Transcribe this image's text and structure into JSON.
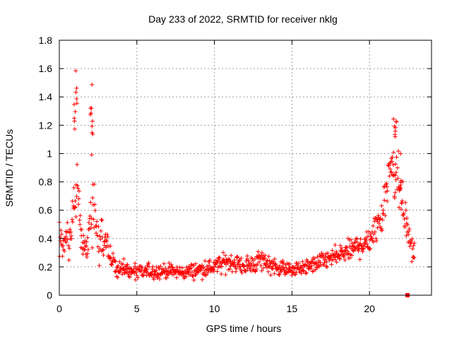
{
  "chart_data": {
    "type": "scatter",
    "title": "Day 233 of 2022, SRMTID for receiver nklg",
    "xlabel": "GPS time / hours",
    "ylabel": "SRMTID / TECUs",
    "xlim": [
      0,
      24
    ],
    "ylim": [
      0,
      1.8
    ],
    "x_ticks": [
      0,
      5,
      10,
      15,
      20
    ],
    "y_ticks": [
      0,
      0.2,
      0.4,
      0.6,
      0.8,
      1,
      1.2,
      1.4,
      1.6,
      1.8
    ],
    "x_tick_labels": [
      "0",
      "5",
      "10",
      "15",
      "20"
    ],
    "y_tick_labels": [
      "0",
      "0.2",
      "0.4",
      "0.6",
      "0.8",
      "1",
      "1.2",
      "1.4",
      "1.6",
      "1.8"
    ],
    "grid": true,
    "marker": "plus",
    "color": "#ff0000",
    "series_envelope": [
      {
        "x": 0.0,
        "y": 0.42,
        "spread": 0.18
      },
      {
        "x": 0.3,
        "y": 0.36,
        "spread": 0.16
      },
      {
        "x": 0.6,
        "y": 0.42,
        "spread": 0.22
      },
      {
        "x": 0.9,
        "y": 0.6,
        "spread": 0.3
      },
      {
        "x": 1.15,
        "y": 0.75,
        "spread": 0.4
      },
      {
        "x": 1.4,
        "y": 0.4,
        "spread": 0.2
      },
      {
        "x": 1.8,
        "y": 0.32,
        "spread": 0.14
      },
      {
        "x": 2.1,
        "y": 0.65,
        "spread": 0.45
      },
      {
        "x": 2.5,
        "y": 0.38,
        "spread": 0.2
      },
      {
        "x": 3.0,
        "y": 0.35,
        "spread": 0.2
      },
      {
        "x": 3.5,
        "y": 0.22,
        "spread": 0.1
      },
      {
        "x": 4.0,
        "y": 0.18,
        "spread": 0.09
      },
      {
        "x": 5.0,
        "y": 0.16,
        "spread": 0.08
      },
      {
        "x": 6.0,
        "y": 0.17,
        "spread": 0.08
      },
      {
        "x": 7.0,
        "y": 0.17,
        "spread": 0.07
      },
      {
        "x": 8.0,
        "y": 0.16,
        "spread": 0.07
      },
      {
        "x": 9.0,
        "y": 0.18,
        "spread": 0.08
      },
      {
        "x": 10.0,
        "y": 0.2,
        "spread": 0.09
      },
      {
        "x": 11.0,
        "y": 0.24,
        "spread": 0.1
      },
      {
        "x": 12.0,
        "y": 0.2,
        "spread": 0.08
      },
      {
        "x": 13.0,
        "y": 0.25,
        "spread": 0.12
      },
      {
        "x": 14.0,
        "y": 0.2,
        "spread": 0.08
      },
      {
        "x": 15.0,
        "y": 0.18,
        "spread": 0.07
      },
      {
        "x": 16.0,
        "y": 0.2,
        "spread": 0.08
      },
      {
        "x": 17.0,
        "y": 0.24,
        "spread": 0.09
      },
      {
        "x": 18.0,
        "y": 0.28,
        "spread": 0.1
      },
      {
        "x": 19.0,
        "y": 0.33,
        "spread": 0.12
      },
      {
        "x": 19.8,
        "y": 0.38,
        "spread": 0.15
      },
      {
        "x": 20.4,
        "y": 0.45,
        "spread": 0.2
      },
      {
        "x": 20.9,
        "y": 0.65,
        "spread": 0.25
      },
      {
        "x": 21.4,
        "y": 0.95,
        "spread": 0.3
      },
      {
        "x": 21.9,
        "y": 0.8,
        "spread": 0.35
      },
      {
        "x": 22.3,
        "y": 0.55,
        "spread": 0.2
      },
      {
        "x": 22.6,
        "y": 0.38,
        "spread": 0.15
      },
      {
        "x": 22.9,
        "y": 0.3,
        "spread": 0.1
      }
    ],
    "peaks": [
      {
        "x": 1.1,
        "y": 1.65
      },
      {
        "x": 1.0,
        "y": 1.5
      },
      {
        "x": 2.05,
        "y": 1.52
      },
      {
        "x": 2.1,
        "y": 1.34
      },
      {
        "x": 21.6,
        "y": 1.29
      },
      {
        "x": 21.7,
        "y": 1.23
      },
      {
        "x": 22.0,
        "y": 1.1
      }
    ],
    "outlier": {
      "x": 22.45,
      "y": 0.0
    }
  }
}
